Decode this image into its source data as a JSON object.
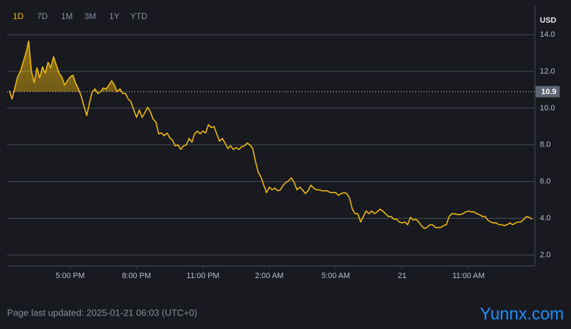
{
  "timeframes": {
    "options": [
      "1D",
      "7D",
      "1M",
      "3M",
      "1Y",
      "YTD"
    ],
    "active": "1D"
  },
  "chart_data": {
    "type": "line",
    "axis_unit": "USD",
    "color": "#f0b90b",
    "grid": true,
    "x": [
      14.25,
      14.375,
      14.5,
      14.625,
      14.75,
      14.875,
      15,
      15.125,
      15.25,
      15.375,
      15.5,
      15.625,
      15.75,
      15.875,
      16,
      16.125,
      16.25,
      16.375,
      16.5,
      16.625,
      16.75,
      16.875,
      17,
      17.125,
      17.25,
      17.375,
      17.5,
      17.625,
      17.75,
      17.875,
      18,
      18.125,
      18.25,
      18.375,
      18.5,
      18.625,
      18.75,
      18.875,
      19,
      19.125,
      19.25,
      19.375,
      19.5,
      19.625,
      19.75,
      19.875,
      20,
      20.125,
      20.25,
      20.375,
      20.5,
      20.625,
      20.75,
      20.875,
      21,
      21.125,
      21.25,
      21.375,
      21.5,
      21.625,
      21.75,
      21.875,
      22,
      22.125,
      22.25,
      22.375,
      22.5,
      22.625,
      22.75,
      22.875,
      23,
      23.125,
      23.25,
      23.375,
      23.5,
      23.625,
      23.75,
      23.875,
      24,
      24.125,
      24.25,
      24.375,
      24.5,
      24.625,
      24.75,
      24.875,
      25,
      25.125,
      25.25,
      25.375,
      25.5,
      25.625,
      25.75,
      25.875,
      26,
      26.125,
      26.25,
      26.375,
      26.5,
      26.625,
      26.75,
      26.875,
      27,
      27.125,
      27.25,
      27.375,
      27.5,
      27.625,
      27.75,
      27.875,
      28,
      28.125,
      28.25,
      28.375,
      28.5,
      28.625,
      28.75,
      28.875,
      29,
      29.125,
      29.25,
      29.375,
      29.5,
      29.625,
      29.75,
      29.875,
      30,
      30.125,
      30.25,
      30.375,
      30.5,
      30.625,
      30.75,
      30.875,
      31,
      31.125,
      31.25,
      31.375,
      31.5,
      31.625,
      31.75,
      31.875,
      32,
      32.125,
      32.25,
      32.375,
      32.5,
      32.625,
      32.75,
      32.875,
      33,
      33.125,
      33.25,
      33.375,
      33.5,
      33.625,
      33.75,
      33.875,
      34,
      34.125,
      34.25,
      34.375,
      34.5,
      34.625,
      34.75,
      34.875,
      35,
      35.125,
      35.25,
      35.375,
      35.5,
      35.625,
      35.75,
      35.875,
      36,
      36.125,
      36.25,
      36.375,
      36.5,
      36.625,
      36.75,
      36.875,
      37,
      37.125,
      37.25,
      37.375,
      37.5,
      37.625,
      37.75,
      37.875
    ],
    "values": [
      10.96,
      10.5,
      11.1,
      11.7,
      12.0,
      12.5,
      13.0,
      13.65,
      12.0,
      11.4,
      12.2,
      11.65,
      12.25,
      11.9,
      12.5,
      12.2,
      12.8,
      12.35,
      11.9,
      11.7,
      11.25,
      11.5,
      11.7,
      11.8,
      11.35,
      11.05,
      10.65,
      10.1,
      9.6,
      10.3,
      10.9,
      11.05,
      10.8,
      10.9,
      11.1,
      11.05,
      11.25,
      11.5,
      11.25,
      10.9,
      11.05,
      10.8,
      10.8,
      10.5,
      10.35,
      9.9,
      9.5,
      9.9,
      9.5,
      9.75,
      10.05,
      9.8,
      9.4,
      9.25,
      8.6,
      8.65,
      8.5,
      8.65,
      8.4,
      8.25,
      7.95,
      8.0,
      7.75,
      7.95,
      8.0,
      8.35,
      8.15,
      8.6,
      8.75,
      8.6,
      8.75,
      8.65,
      9.1,
      8.95,
      9.0,
      8.6,
      8.2,
      8.35,
      8.1,
      7.8,
      7.95,
      7.75,
      7.85,
      7.75,
      7.9,
      7.95,
      8.1,
      8.0,
      7.8,
      7.1,
      6.5,
      6.25,
      5.8,
      5.4,
      5.7,
      5.55,
      5.65,
      5.5,
      5.55,
      5.8,
      5.95,
      6.05,
      6.2,
      5.95,
      5.55,
      5.7,
      5.55,
      5.35,
      5.5,
      5.8,
      5.65,
      5.55,
      5.55,
      5.5,
      5.5,
      5.5,
      5.4,
      5.4,
      5.4,
      5.25,
      5.35,
      5.4,
      5.35,
      5.1,
      4.5,
      4.25,
      4.25,
      3.8,
      4.1,
      4.4,
      4.25,
      4.4,
      4.25,
      4.35,
      4.5,
      4.4,
      4.25,
      4.1,
      4.1,
      3.95,
      3.95,
      3.8,
      3.75,
      3.8,
      3.65,
      4.05,
      3.9,
      3.95,
      3.8,
      3.6,
      3.45,
      3.5,
      3.65,
      3.65,
      3.5,
      3.5,
      3.5,
      3.6,
      3.65,
      4.1,
      4.25,
      4.25,
      4.2,
      4.2,
      4.25,
      4.35,
      4.4,
      4.35,
      4.35,
      4.25,
      4.2,
      4.1,
      4.1,
      3.9,
      3.8,
      3.75,
      3.75,
      3.65,
      3.65,
      3.6,
      3.65,
      3.75,
      3.65,
      3.75,
      3.8,
      3.8,
      3.95,
      4.1,
      4.05,
      3.95
    ],
    "xlim": [
      14.15,
      38.0
    ],
    "xticks": [
      {
        "value": 17,
        "label": "5:00 PM"
      },
      {
        "value": 20,
        "label": "8:00 PM"
      },
      {
        "value": 23,
        "label": "11:00 PM"
      },
      {
        "value": 26,
        "label": "2:00 AM"
      },
      {
        "value": 29,
        "label": "5:00 AM"
      },
      {
        "value": 32,
        "label": "21"
      },
      {
        "value": 35,
        "label": "11:00 AM"
      }
    ],
    "ylim": [
      1.4,
      15.2
    ],
    "yticks": [
      {
        "value": 2,
        "label": "2.0"
      },
      {
        "value": 4,
        "label": "4.0"
      },
      {
        "value": 6,
        "label": "6.0"
      },
      {
        "value": 8,
        "label": "8.0"
      },
      {
        "value": 10,
        "label": "10.0"
      },
      {
        "value": 12,
        "label": "12.0"
      },
      {
        "value": 14,
        "label": "14.0"
      }
    ],
    "reference_line": {
      "value": 10.9,
      "label": "10.9"
    }
  },
  "footer": "Page last updated: 2025-01-21 06:03 (UTC+0)",
  "watermark": "Yunnx.com"
}
